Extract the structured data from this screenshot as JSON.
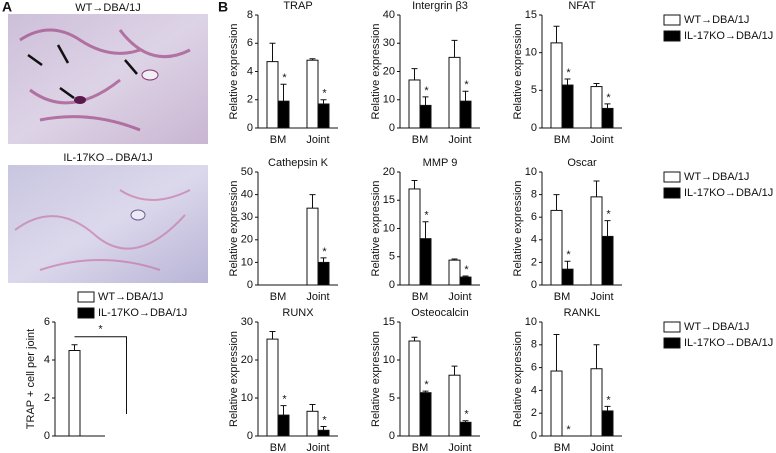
{
  "panel_labels": [
    "A",
    "B"
  ],
  "images": [
    {
      "caption": "WT→DBA/1J"
    },
    {
      "caption": "IL-17KO→DBA/1J"
    }
  ],
  "chart_data": [
    {
      "type": "bar",
      "ylabel": "TRAP + cell per joint",
      "categories": [
        null
      ],
      "ylim": [
        0,
        6
      ],
      "yticks": [
        0,
        2,
        4,
        6
      ],
      "legend": "top",
      "annotation": "*",
      "series": [
        {
          "name": "WT→DBA/1J",
          "color": "#ffffff",
          "values": [
            4.5
          ],
          "errors": [
            0.3
          ]
        },
        {
          "name": "IL-17KO→DBA/1J",
          "color": "#000000",
          "values": [
            0
          ],
          "errors": [
            0
          ]
        }
      ]
    },
    {
      "type": "bar",
      "title": "TRAP",
      "ylabel": "Relative expression",
      "categories": [
        "BM",
        "Joint"
      ],
      "ylim": [
        0,
        8
      ],
      "yticks": [
        0,
        2,
        4,
        6,
        8
      ],
      "series": [
        {
          "name": "WT→DBA/1J",
          "color": "#ffffff",
          "values": [
            4.7,
            4.8
          ],
          "errors": [
            1.3,
            0.1
          ]
        },
        {
          "name": "IL-17KO→DBA/1J",
          "color": "#000000",
          "values": [
            1.9,
            1.7
          ],
          "errors": [
            1.2,
            0.3
          ],
          "significance": [
            "*",
            "*"
          ]
        }
      ]
    },
    {
      "type": "bar",
      "title": "Intergrin β3",
      "ylabel": "Relative expression",
      "categories": [
        "BM",
        "Joint"
      ],
      "ylim": [
        0,
        40
      ],
      "yticks": [
        0,
        10,
        20,
        30,
        40
      ],
      "series": [
        {
          "name": "WT→DBA/1J",
          "color": "#ffffff",
          "values": [
            17,
            25
          ],
          "errors": [
            4,
            6
          ]
        },
        {
          "name": "IL-17KO→DBA/1J",
          "color": "#000000",
          "values": [
            8,
            9.5
          ],
          "errors": [
            3,
            3.5
          ],
          "significance": [
            "*",
            "*"
          ]
        }
      ]
    },
    {
      "type": "bar",
      "title": "NFAT",
      "ylabel": "Relative expression",
      "categories": [
        "BM",
        "Joint"
      ],
      "ylim": [
        0,
        15
      ],
      "yticks": [
        0,
        5,
        10,
        15
      ],
      "legend": "right",
      "series": [
        {
          "name": "WT→DBA/1J",
          "color": "#ffffff",
          "values": [
            11.3,
            5.5
          ],
          "errors": [
            2.2,
            0.4
          ]
        },
        {
          "name": "IL-17KO→DBA/1J",
          "color": "#000000",
          "values": [
            5.7,
            2.6
          ],
          "errors": [
            0.8,
            0.6
          ],
          "significance": [
            "*",
            "*"
          ]
        }
      ]
    },
    {
      "type": "bar",
      "title": "Cathepsin K",
      "ylabel": "Relative expression",
      "categories": [
        "BM",
        "Joint"
      ],
      "ylim": [
        0,
        50
      ],
      "yticks": [
        0,
        10,
        20,
        30,
        40,
        50
      ],
      "series": [
        {
          "name": "WT→DBA/1J",
          "color": "#ffffff",
          "values": [
            0,
            34
          ],
          "errors": [
            0,
            6
          ]
        },
        {
          "name": "IL-17KO→DBA/1J",
          "color": "#000000",
          "values": [
            0,
            10
          ],
          "errors": [
            0,
            2
          ],
          "significance": [
            null,
            "*"
          ]
        }
      ]
    },
    {
      "type": "bar",
      "title": "MMP 9",
      "ylabel": "Relative expression",
      "categories": [
        "BM",
        "Joint"
      ],
      "ylim": [
        0,
        20
      ],
      "yticks": [
        0,
        5,
        10,
        15,
        20
      ],
      "series": [
        {
          "name": "WT→DBA/1J",
          "color": "#ffffff",
          "values": [
            17,
            4.4
          ],
          "errors": [
            1.5,
            0.2
          ]
        },
        {
          "name": "IL-17KO→DBA/1J",
          "color": "#000000",
          "values": [
            8.2,
            1.4
          ],
          "errors": [
            3,
            0.2
          ],
          "significance": [
            "*",
            "*"
          ]
        }
      ]
    },
    {
      "type": "bar",
      "title": "Oscar",
      "ylabel": "Relative expression",
      "categories": [
        "BM",
        "Joint"
      ],
      "ylim": [
        0,
        10
      ],
      "yticks": [
        0,
        2,
        4,
        6,
        8,
        10
      ],
      "legend": "right",
      "series": [
        {
          "name": "WT→DBA/1J",
          "color": "#ffffff",
          "values": [
            6.6,
            7.8
          ],
          "errors": [
            1.4,
            1.4
          ]
        },
        {
          "name": "IL-17KO→DBA/1J",
          "color": "#000000",
          "values": [
            1.4,
            4.3
          ],
          "errors": [
            0.7,
            1.4
          ],
          "significance": [
            "*",
            "*"
          ]
        }
      ]
    },
    {
      "type": "bar",
      "title": "RUNX",
      "ylabel": "Relative expression",
      "categories": [
        "BM",
        "Joint"
      ],
      "ylim": [
        0,
        30
      ],
      "yticks": [
        0,
        10,
        20,
        30
      ],
      "series": [
        {
          "name": "WT→DBA/1J",
          "color": "#ffffff",
          "values": [
            25.5,
            6.5
          ],
          "errors": [
            2,
            1.8
          ]
        },
        {
          "name": "IL-17KO→DBA/1J",
          "color": "#000000",
          "values": [
            5.5,
            1.5
          ],
          "errors": [
            2.5,
            1
          ],
          "significance": [
            "*",
            "*"
          ]
        }
      ]
    },
    {
      "type": "bar",
      "title": "Osteocalcin",
      "ylabel": "Relative expression",
      "categories": [
        "BM",
        "Joint"
      ],
      "ylim": [
        0,
        15
      ],
      "yticks": [
        0,
        5,
        10,
        15
      ],
      "series": [
        {
          "name": "WT→DBA/1J",
          "color": "#ffffff",
          "values": [
            12.5,
            8
          ],
          "errors": [
            0.5,
            1.2
          ]
        },
        {
          "name": "IL-17KO→DBA/1J",
          "color": "#000000",
          "values": [
            5.7,
            1.8
          ],
          "errors": [
            0.2,
            0.2
          ],
          "significance": [
            "*",
            "*"
          ]
        }
      ]
    },
    {
      "type": "bar",
      "title": "RANKL",
      "ylabel": "Relative expression",
      "categories": [
        "BM",
        "Joint"
      ],
      "ylim": [
        0,
        10
      ],
      "yticks": [
        0,
        2,
        4,
        6,
        8,
        10
      ],
      "legend": "right",
      "series": [
        {
          "name": "WT→DBA/1J",
          "color": "#ffffff",
          "values": [
            5.7,
            5.9
          ],
          "errors": [
            3.2,
            2.1
          ]
        },
        {
          "name": "IL-17KO→DBA/1J",
          "color": "#000000",
          "values": [
            0,
            2.2
          ],
          "errors": [
            0,
            0.4
          ],
          "significance": [
            "*",
            "*"
          ]
        }
      ]
    }
  ]
}
